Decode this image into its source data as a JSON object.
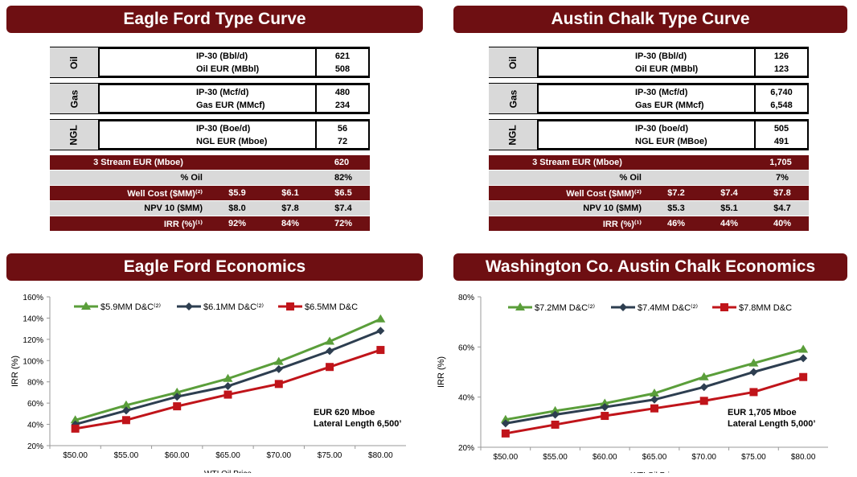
{
  "titles": {
    "ef_type": "Eagle Ford Type Curve",
    "ac_type": "Austin Chalk Type Curve",
    "ef_econ": "Eagle Ford Economics",
    "ac_econ": "Washington Co. Austin Chalk Economics"
  },
  "ef_table": {
    "groups": [
      {
        "side": "Oil",
        "rows": [
          {
            "label": "IP-30 (Bbl/d)",
            "value": "621"
          },
          {
            "label": "Oil EUR (MBbl)",
            "value": "508"
          }
        ]
      },
      {
        "side": "Gas",
        "rows": [
          {
            "label": "IP-30 (Mcf/d)",
            "value": "480"
          },
          {
            "label": "Gas EUR (MMcf)",
            "value": "234"
          }
        ]
      },
      {
        "side": "NGL",
        "rows": [
          {
            "label": "IP-30 (Boe/d)",
            "value": "56"
          },
          {
            "label": "NGL EUR (Mboe)",
            "value": "72"
          }
        ]
      }
    ],
    "summary": [
      {
        "label": "3 Stream EUR (Mboe)",
        "c1": "",
        "c2": "",
        "c3": "620",
        "style": "dark"
      },
      {
        "label": "% Oil",
        "c1": "",
        "c2": "",
        "c3": "82%",
        "style": "light"
      },
      {
        "label": "Well Cost ($MM)⁽²⁾",
        "c1": "$5.9",
        "c2": "$6.1",
        "c3": "$6.5",
        "style": "dark"
      },
      {
        "label": "NPV 10 ($MM)",
        "c1": "$8.0",
        "c2": "$7.8",
        "c3": "$7.4",
        "style": "light"
      },
      {
        "label": "IRR (%)⁽¹⁾",
        "c1": "92%",
        "c2": "84%",
        "c3": "72%",
        "style": "dark"
      }
    ]
  },
  "ac_table": {
    "groups": [
      {
        "side": "Oil",
        "rows": [
          {
            "label": "IP-30 (Bbl/d)",
            "value": "126"
          },
          {
            "label": "Oil EUR (MBbl)",
            "value": "123"
          }
        ]
      },
      {
        "side": "Gas",
        "rows": [
          {
            "label": "IP-30 (Mcf/d)",
            "value": "6,740"
          },
          {
            "label": "Gas EUR (MMcf)",
            "value": "6,548"
          }
        ]
      },
      {
        "side": "NGL",
        "rows": [
          {
            "label": "IP-30 (boe/d)",
            "value": "505"
          },
          {
            "label": "NGL EUR (MBoe)",
            "value": "491"
          }
        ]
      }
    ],
    "summary": [
      {
        "label": "3 Stream EUR (Mboe)",
        "c1": "",
        "c2": "",
        "c3": "1,705",
        "style": "dark"
      },
      {
        "label": "% Oil",
        "c1": "",
        "c2": "",
        "c3": "7%",
        "style": "light"
      },
      {
        "label": "Well Cost ($MM)⁽²⁾",
        "c1": "$7.2",
        "c2": "$7.4",
        "c3": "$7.8",
        "style": "dark"
      },
      {
        "label": "NPV 10 ($MM)",
        "c1": "$5.3",
        "c2": "$5.1",
        "c3": "$4.7",
        "style": "light"
      },
      {
        "label": "IRR (%)⁽¹⁾",
        "c1": "46%",
        "c2": "44%",
        "c3": "40%",
        "style": "dark"
      }
    ]
  },
  "colors": {
    "green": "#5a9e3a",
    "navy": "#2d3e50",
    "red": "#c0141a",
    "banner": "#6e0f12"
  },
  "chart_data": [
    {
      "type": "line",
      "ylabel": "IRR (%)",
      "xlabel": "WTI Oil Price",
      "categories": [
        "$50.00",
        "$55.00",
        "$60.00",
        "$65.00",
        "$70.00",
        "$75.00",
        "$80.00"
      ],
      "ylim": [
        20,
        160
      ],
      "yticks": [
        20,
        40,
        60,
        80,
        100,
        120,
        140,
        160
      ],
      "ytick_labels": [
        "20%",
        "40%",
        "60%",
        "80%",
        "100%",
        "120%",
        "140%",
        "160%"
      ],
      "legend_position": "top-left",
      "annotation": [
        "EUR 620 Mboe",
        "Lateral Length 6,500’"
      ],
      "series": [
        {
          "name": "$5.9MM D&C⁽²⁾",
          "color": "#5a9e3a",
          "marker": "triangle",
          "values": [
            44,
            58,
            70,
            83,
            99,
            118,
            139
          ]
        },
        {
          "name": "$6.1MM D&C⁽²⁾",
          "color": "#2d3e50",
          "marker": "diamond",
          "values": [
            40,
            53,
            66,
            76,
            92,
            109,
            128
          ]
        },
        {
          "name": "$6.5MM D&C",
          "color": "#c0141a",
          "marker": "square",
          "values": [
            36,
            44,
            57,
            68,
            78,
            94,
            110
          ]
        }
      ]
    },
    {
      "type": "line",
      "ylabel": "IRR (%)",
      "xlabel": "WTI Oil Price",
      "categories": [
        "$50.00",
        "$55.00",
        "$60.00",
        "$65.00",
        "$70.00",
        "$75.00",
        "$80.00"
      ],
      "ylim": [
        20,
        80
      ],
      "yticks": [
        20,
        40,
        60,
        80
      ],
      "ytick_labels": [
        "20%",
        "40%",
        "60%",
        "80%"
      ],
      "legend_position": "top-left",
      "annotation": [
        "EUR 1,705 Mboe",
        "Lateral Length 5,000’"
      ],
      "series": [
        {
          "name": "$7.2MM D&C⁽²⁾",
          "color": "#5a9e3a",
          "marker": "triangle",
          "values": [
            31,
            34.5,
            37.5,
            41.5,
            48,
            53.5,
            59
          ]
        },
        {
          "name": "$7.4MM D&C⁽²⁾",
          "color": "#2d3e50",
          "marker": "diamond",
          "values": [
            29.5,
            33,
            36,
            39,
            44,
            50,
            55.5
          ]
        },
        {
          "name": "$7.8MM D&C",
          "color": "#c0141a",
          "marker": "square",
          "values": [
            25.5,
            29,
            32.5,
            35.5,
            38.5,
            42,
            48
          ]
        }
      ]
    }
  ]
}
